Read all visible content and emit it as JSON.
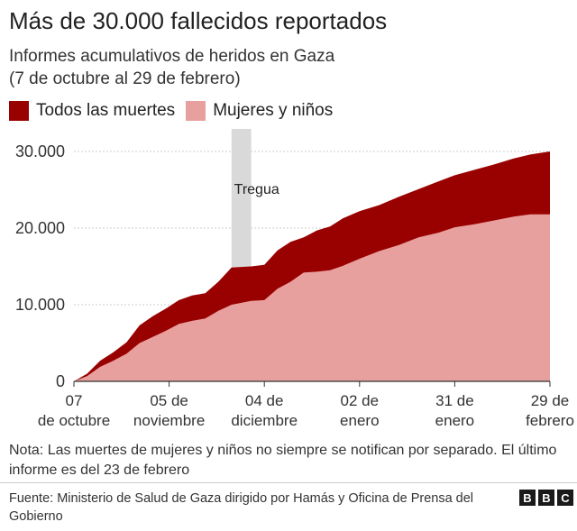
{
  "title": "Más de 30.000 fallecidos reportados",
  "subtitle_line1": "Informes acumulativos de heridos en Gaza",
  "subtitle_line2": "(7 de octubre al 29 de febrero)",
  "legend": [
    {
      "label": "Todos las muertes",
      "color": "#990000"
    },
    {
      "label": "Mujeres y niños",
      "color": "#e8a09e"
    }
  ],
  "note": "Nota: Las muertes de mujeres y niños no siempre se notifican por separado. El último informe es del 23 de febrero",
  "source": "Fuente: Ministerio de Salud de Gaza dirigido por Hamás y Oficina de Prensa del Gobierno",
  "logo": [
    "B",
    "B",
    "C"
  ],
  "chart_data": {
    "type": "area",
    "x_unit": "date",
    "xlim": [
      "2023-10-07",
      "2024-02-29"
    ],
    "ylim": [
      0,
      30000
    ],
    "y_ticks": [
      0,
      10000,
      20000,
      30000
    ],
    "y_tick_labels": [
      "0",
      "10.000",
      "20.000",
      "30.000"
    ],
    "x_ticks": [
      "2023-10-07",
      "2023-11-05",
      "2023-12-04",
      "2024-01-02",
      "2024-01-31",
      "2024-02-29"
    ],
    "x_tick_labels": [
      [
        "07",
        "de octubre"
      ],
      [
        "05 de",
        "noviembre"
      ],
      [
        "04 de",
        "diciembre"
      ],
      [
        "02 de",
        "enero"
      ],
      [
        "31 de",
        "enero"
      ],
      [
        "29 de",
        "febrero"
      ]
    ],
    "grid": true,
    "legend_position": "top-left",
    "annotation": {
      "label": "Tregua",
      "start": "2023-11-24",
      "end": "2023-11-30",
      "color": "#d9d9d9"
    },
    "series": [
      {
        "name": "Todos las muertes",
        "color": "#990000",
        "x": [
          "2023-10-07",
          "2023-10-11",
          "2023-10-15",
          "2023-10-19",
          "2023-10-23",
          "2023-10-27",
          "2023-10-31",
          "2023-11-04",
          "2023-11-08",
          "2023-11-12",
          "2023-11-16",
          "2023-11-20",
          "2023-11-24",
          "2023-11-30",
          "2023-12-04",
          "2023-12-08",
          "2023-12-12",
          "2023-12-16",
          "2023-12-20",
          "2023-12-24",
          "2023-12-28",
          "2024-01-02",
          "2024-01-08",
          "2024-01-14",
          "2024-01-20",
          "2024-01-26",
          "2024-01-31",
          "2024-02-06",
          "2024-02-12",
          "2024-02-18",
          "2024-02-23",
          "2024-02-29"
        ],
        "values": [
          0,
          1000,
          2700,
          3800,
          5100,
          7300,
          8500,
          9500,
          10600,
          11200,
          11500,
          13000,
          14850,
          15000,
          15200,
          17100,
          18200,
          18800,
          19700,
          20200,
          21300,
          22200,
          23000,
          24100,
          25100,
          26100,
          26900,
          27600,
          28300,
          29100,
          29600,
          30000
        ]
      },
      {
        "name": "Mujeres y niños",
        "color": "#e8a09e",
        "x": [
          "2023-10-07",
          "2023-10-11",
          "2023-10-15",
          "2023-10-19",
          "2023-10-23",
          "2023-10-27",
          "2023-10-31",
          "2023-11-04",
          "2023-11-08",
          "2023-11-12",
          "2023-11-16",
          "2023-11-20",
          "2023-11-24",
          "2023-11-30",
          "2023-12-04",
          "2023-12-08",
          "2023-12-12",
          "2023-12-16",
          "2023-12-20",
          "2023-12-24",
          "2023-12-28",
          "2024-01-02",
          "2024-01-08",
          "2024-01-14",
          "2024-01-20",
          "2024-01-26",
          "2024-01-31",
          "2024-02-06",
          "2024-02-12",
          "2024-02-18",
          "2024-02-23",
          "2024-02-29"
        ],
        "values": [
          0,
          700,
          1900,
          2700,
          3600,
          5000,
          5800,
          6600,
          7500,
          7900,
          8200,
          9200,
          10000,
          10500,
          10600,
          12100,
          13000,
          14200,
          14300,
          14500,
          15100,
          16000,
          17000,
          17800,
          18800,
          19400,
          20100,
          20500,
          21000,
          21500,
          21800,
          21800
        ]
      }
    ]
  }
}
